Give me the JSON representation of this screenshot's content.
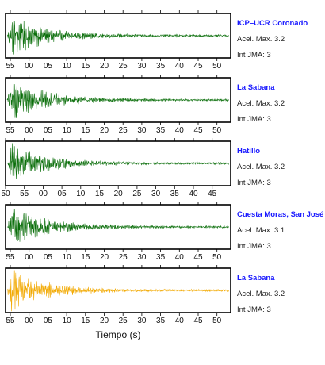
{
  "chart_data": {
    "type": "line",
    "xlabel": "Tiempo (s)",
    "panels": [
      {
        "station": "ICP–UCR Coronado",
        "accel_label": "Acel. Max. 3.2",
        "jma_label": "Int JMA: 3",
        "color": "#0a6e0a",
        "tick_labels": [
          "55",
          "00",
          "05",
          "10",
          "15",
          "20",
          "25",
          "30",
          "35",
          "40",
          "45",
          "50"
        ],
        "peak_amplitude": 3.2
      },
      {
        "station": "La Sabana",
        "accel_label": "Acel. Max. 3.2",
        "jma_label": "Int JMA: 3",
        "color": "#0a6e0a",
        "tick_labels": [
          "55",
          "00",
          "05",
          "10",
          "15",
          "20",
          "25",
          "30",
          "35",
          "40",
          "45",
          "50"
        ],
        "peak_amplitude": 3.2
      },
      {
        "station": "Hatillo",
        "accel_label": "Acel. Max. 3.2",
        "jma_label": "Int JMA: 3",
        "color": "#0a6e0a",
        "tick_labels": [
          "50",
          "55",
          "00",
          "05",
          "10",
          "15",
          "20",
          "25",
          "30",
          "35",
          "40",
          "45"
        ],
        "peak_amplitude": 3.2
      },
      {
        "station": "Cuesta Moras, San José",
        "accel_label": "Acel. Max. 3.1",
        "jma_label": "Int JMA: 3",
        "color": "#0a6e0a",
        "tick_labels": [
          "55",
          "00",
          "05",
          "10",
          "15",
          "20",
          "25",
          "30",
          "35",
          "40",
          "45",
          "50"
        ],
        "peak_amplitude": 3.1
      },
      {
        "station": "La Sabana",
        "accel_label": "Acel. Max. 3.2",
        "jma_label": "Int JMA: 3",
        "color": "#f2a900",
        "tick_labels": [
          "55",
          "00",
          "05",
          "10",
          "15",
          "20",
          "25",
          "30",
          "35",
          "40",
          "45",
          "50"
        ],
        "peak_amplitude": 3.2
      }
    ]
  }
}
